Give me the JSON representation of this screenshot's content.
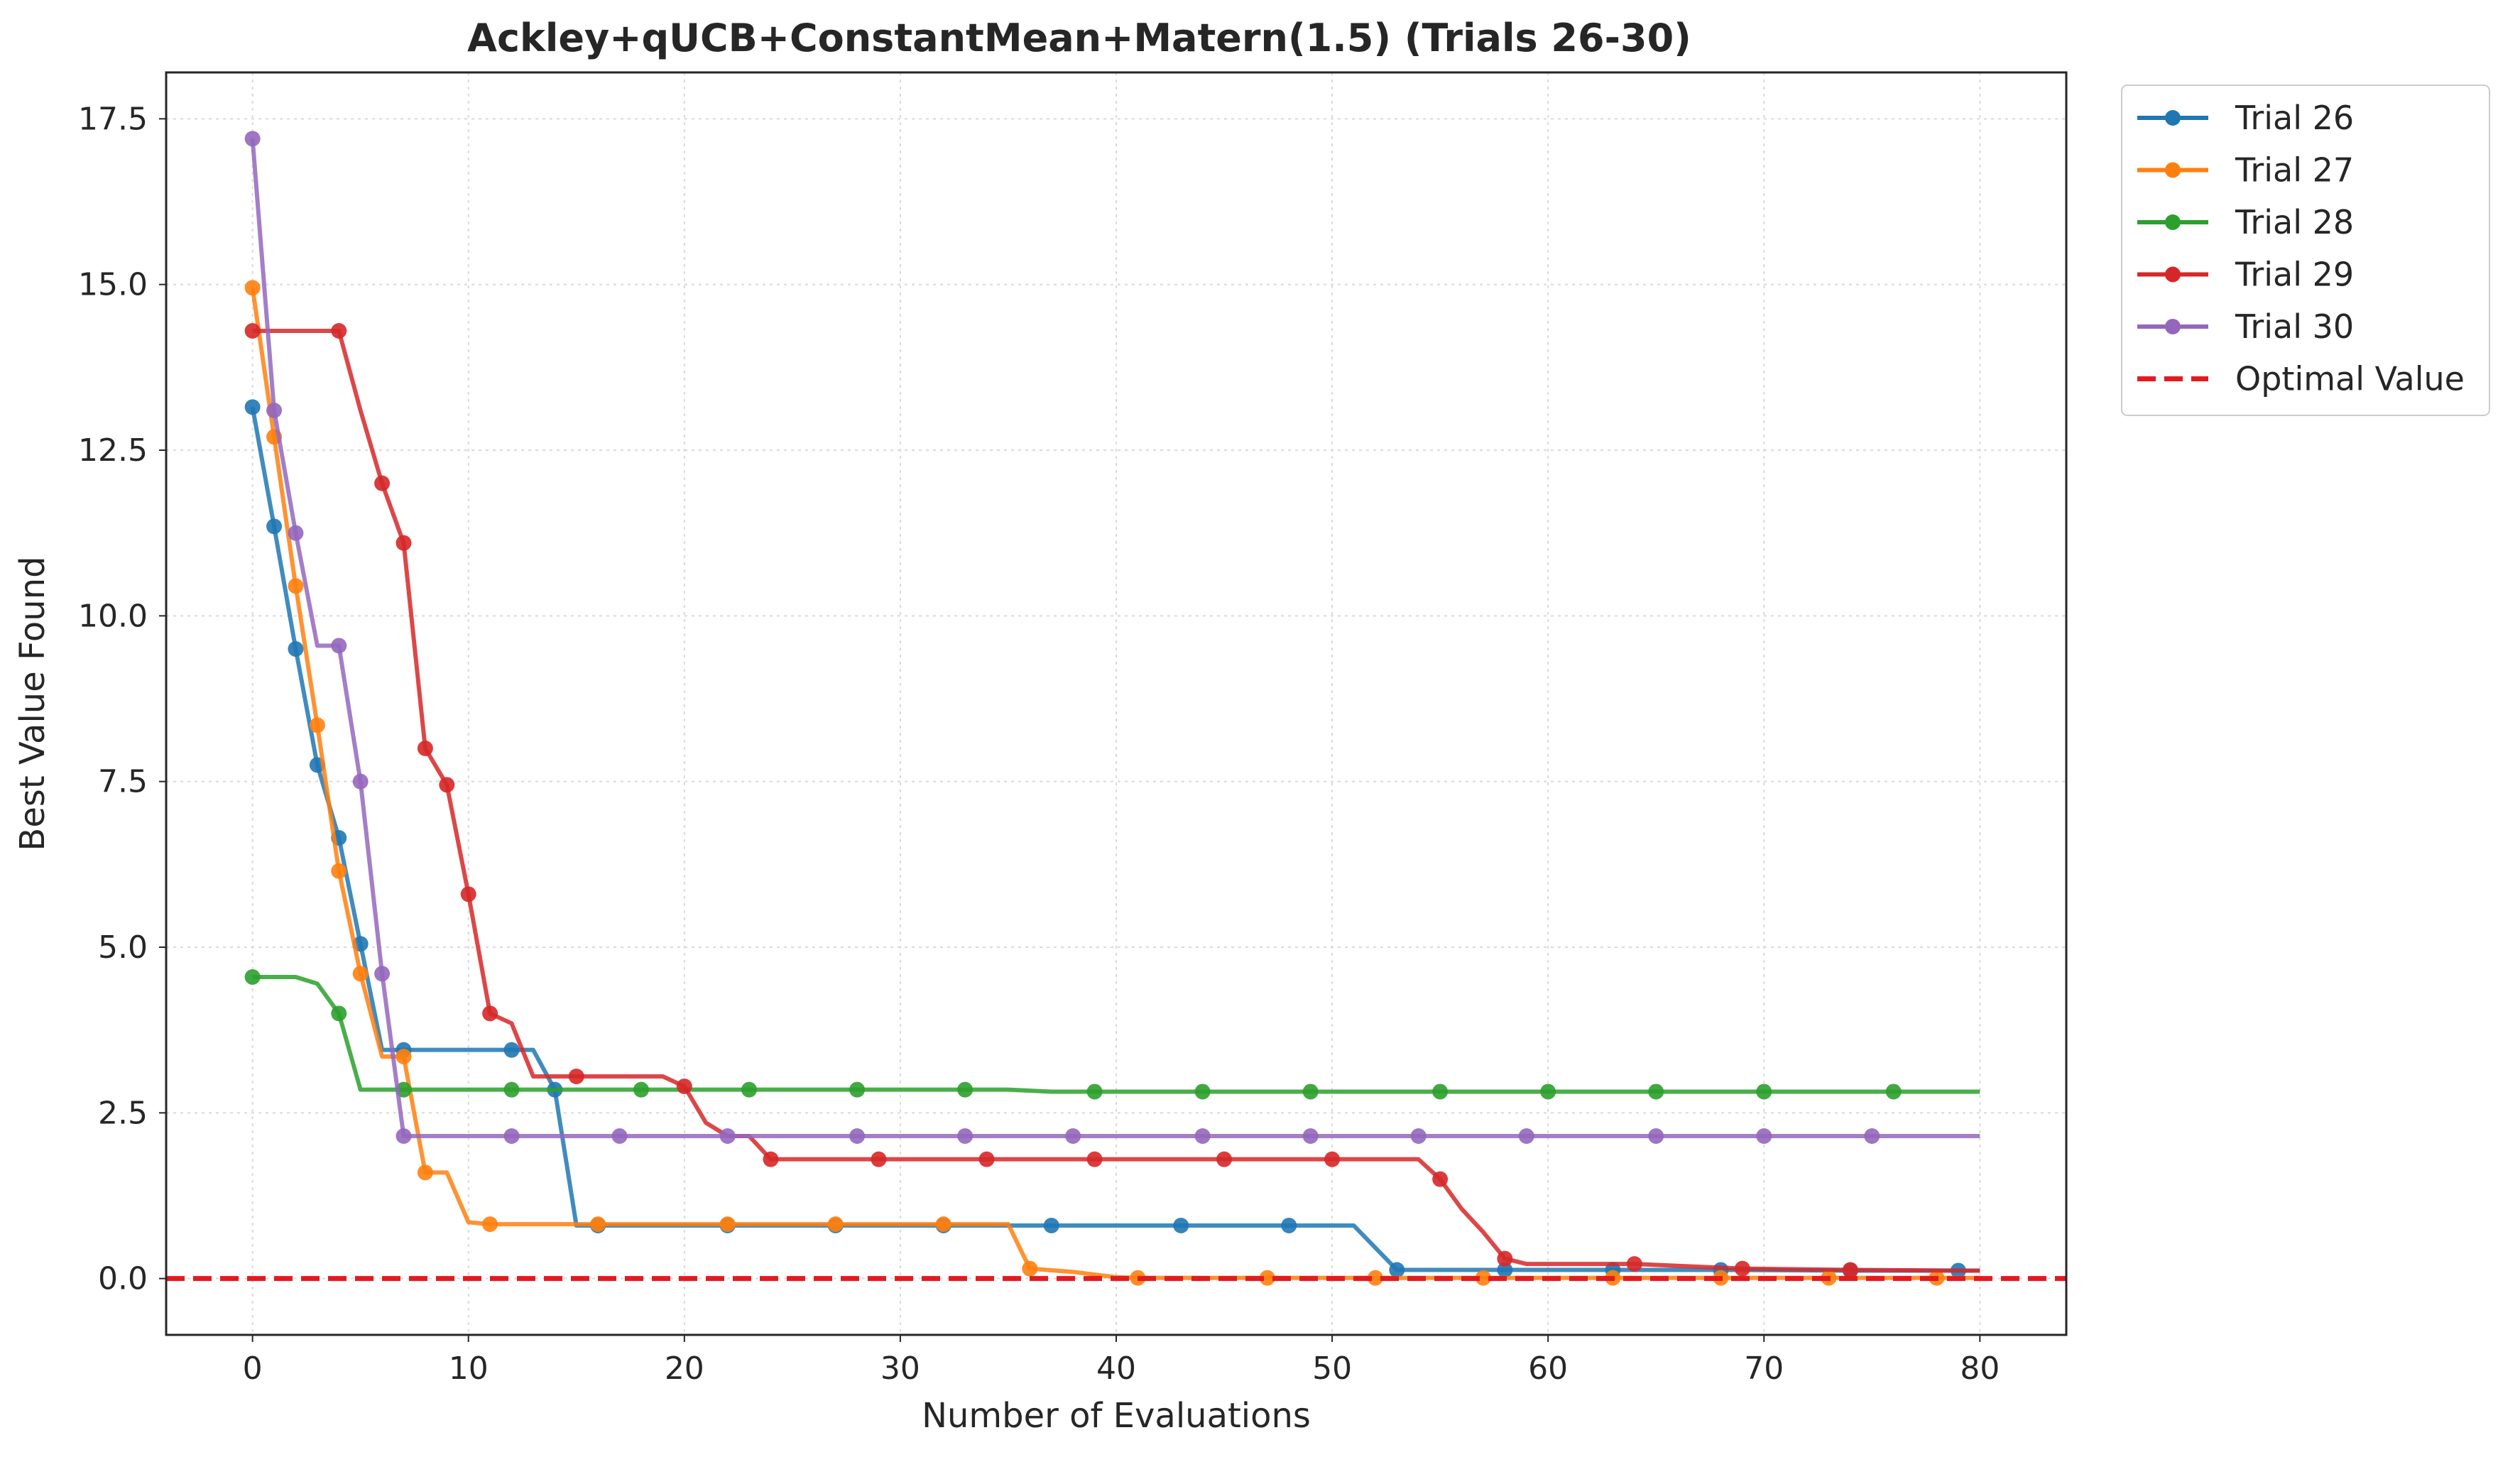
{
  "chart_data": {
    "type": "line",
    "title": "Ackley+qUCB+ConstantMean+Matern(1.5) (Trials 26-30)",
    "xlabel": "Number of Evaluations",
    "ylabel": "Best Value Found",
    "xlim": [
      -4,
      84
    ],
    "ylim": [
      -0.85,
      18.2
    ],
    "xticks": [
      0,
      10,
      20,
      30,
      40,
      50,
      60,
      70,
      80
    ],
    "yticks": [
      0.0,
      2.5,
      5.0,
      7.5,
      10.0,
      12.5,
      15.0,
      17.5
    ],
    "xtick_labels": [
      "0",
      "10",
      "20",
      "30",
      "40",
      "50",
      "60",
      "70",
      "80"
    ],
    "ytick_labels": [
      "0.0",
      "2.5",
      "5.0",
      "7.5",
      "10.0",
      "12.5",
      "15.0",
      "17.5"
    ],
    "grid": true,
    "legend_position": "outside upper-right",
    "optimal_value": 0.0,
    "optimal_label": "Optimal Value",
    "optimal_color": "#e41a1c",
    "series": [
      {
        "name": "Trial 26",
        "color": "#1f77b4",
        "x": [
          0,
          1,
          2,
          3,
          4,
          5,
          6,
          7,
          12,
          13,
          14,
          15,
          16,
          22,
          27,
          32,
          37,
          43,
          48,
          51,
          53,
          58,
          63,
          68,
          74,
          79,
          80
        ],
        "y": [
          13.15,
          11.35,
          9.5,
          7.75,
          6.65,
          5.05,
          3.45,
          3.45,
          3.45,
          3.45,
          2.85,
          0.8,
          0.8,
          0.8,
          0.8,
          0.8,
          0.8,
          0.8,
          0.8,
          0.8,
          0.13,
          0.13,
          0.13,
          0.13,
          0.12,
          0.12,
          0.12
        ],
        "marker_x": [
          0,
          1,
          2,
          3,
          4,
          5,
          7,
          12,
          14,
          16,
          22,
          27,
          32,
          37,
          43,
          48,
          53,
          58,
          63,
          68,
          74,
          79
        ]
      },
      {
        "name": "Trial 27",
        "color": "#ff7f0e",
        "x": [
          0,
          1,
          2,
          3,
          4,
          5,
          6,
          7,
          8,
          9,
          10,
          11,
          16,
          22,
          27,
          32,
          35,
          36,
          38,
          40,
          41,
          47,
          52,
          57,
          63,
          68,
          73,
          78,
          80
        ],
        "y": [
          14.95,
          12.7,
          10.45,
          8.35,
          6.15,
          4.6,
          3.35,
          3.35,
          1.6,
          1.6,
          0.85,
          0.82,
          0.82,
          0.82,
          0.82,
          0.82,
          0.82,
          0.15,
          0.1,
          0.02,
          0.01,
          0.01,
          0.01,
          0.01,
          0.01,
          0.01,
          0.01,
          0.01,
          0.01
        ],
        "marker_x": [
          0,
          1,
          2,
          3,
          4,
          5,
          7,
          8,
          11,
          16,
          22,
          27,
          32,
          36,
          41,
          47,
          52,
          57,
          63,
          68,
          73,
          78
        ]
      },
      {
        "name": "Trial 28",
        "color": "#2ca02c",
        "x": [
          0,
          1,
          2,
          3,
          4,
          5,
          7,
          12,
          18,
          23,
          28,
          33,
          35,
          37,
          39,
          44,
          49,
          55,
          60,
          65,
          70,
          76,
          80
        ],
        "y": [
          4.55,
          4.55,
          4.55,
          4.45,
          4.0,
          2.85,
          2.85,
          2.85,
          2.85,
          2.85,
          2.85,
          2.85,
          2.85,
          2.82,
          2.82,
          2.82,
          2.82,
          2.82,
          2.82,
          2.82,
          2.82,
          2.82,
          2.82
        ],
        "marker_x": [
          0,
          4,
          7,
          12,
          18,
          23,
          28,
          33,
          39,
          44,
          49,
          55,
          60,
          65,
          70,
          76
        ]
      },
      {
        "name": "Trial 29",
        "color": "#d62728",
        "x": [
          0,
          1,
          2,
          3,
          4,
          5,
          6,
          7,
          8,
          9,
          10,
          11,
          12,
          13,
          14,
          15,
          19,
          20,
          21,
          22,
          23,
          24,
          29,
          34,
          39,
          45,
          50,
          54,
          55,
          56,
          57,
          58,
          59,
          64,
          69,
          74,
          79,
          80
        ],
        "y": [
          14.3,
          14.3,
          14.3,
          14.3,
          14.3,
          13.1,
          12.0,
          11.1,
          8.0,
          7.45,
          5.8,
          4.0,
          3.85,
          3.05,
          3.05,
          3.05,
          3.05,
          2.9,
          2.35,
          2.15,
          2.15,
          1.8,
          1.8,
          1.8,
          1.8,
          1.8,
          1.8,
          1.8,
          1.5,
          1.05,
          0.7,
          0.3,
          0.22,
          0.22,
          0.15,
          0.13,
          0.12,
          0.12
        ],
        "marker_x": [
          0,
          4,
          6,
          7,
          8,
          9,
          10,
          11,
          15,
          20,
          24,
          29,
          34,
          39,
          45,
          50,
          55,
          58,
          64,
          69,
          74
        ]
      },
      {
        "name": "Trial 30",
        "color": "#9467bd",
        "x": [
          0,
          1,
          2,
          3,
          4,
          5,
          6,
          7,
          12,
          17,
          22,
          28,
          33,
          38,
          44,
          49,
          54,
          59,
          65,
          70,
          75,
          80
        ],
        "y": [
          17.2,
          13.1,
          11.25,
          9.55,
          9.55,
          7.5,
          4.6,
          2.15,
          2.15,
          2.15,
          2.15,
          2.15,
          2.15,
          2.15,
          2.15,
          2.15,
          2.15,
          2.15,
          2.15,
          2.15,
          2.15,
          2.15
        ],
        "marker_x": [
          0,
          1,
          2,
          4,
          5,
          6,
          7,
          12,
          17,
          22,
          28,
          33,
          38,
          44,
          49,
          54,
          59,
          65,
          70,
          75
        ]
      }
    ]
  }
}
